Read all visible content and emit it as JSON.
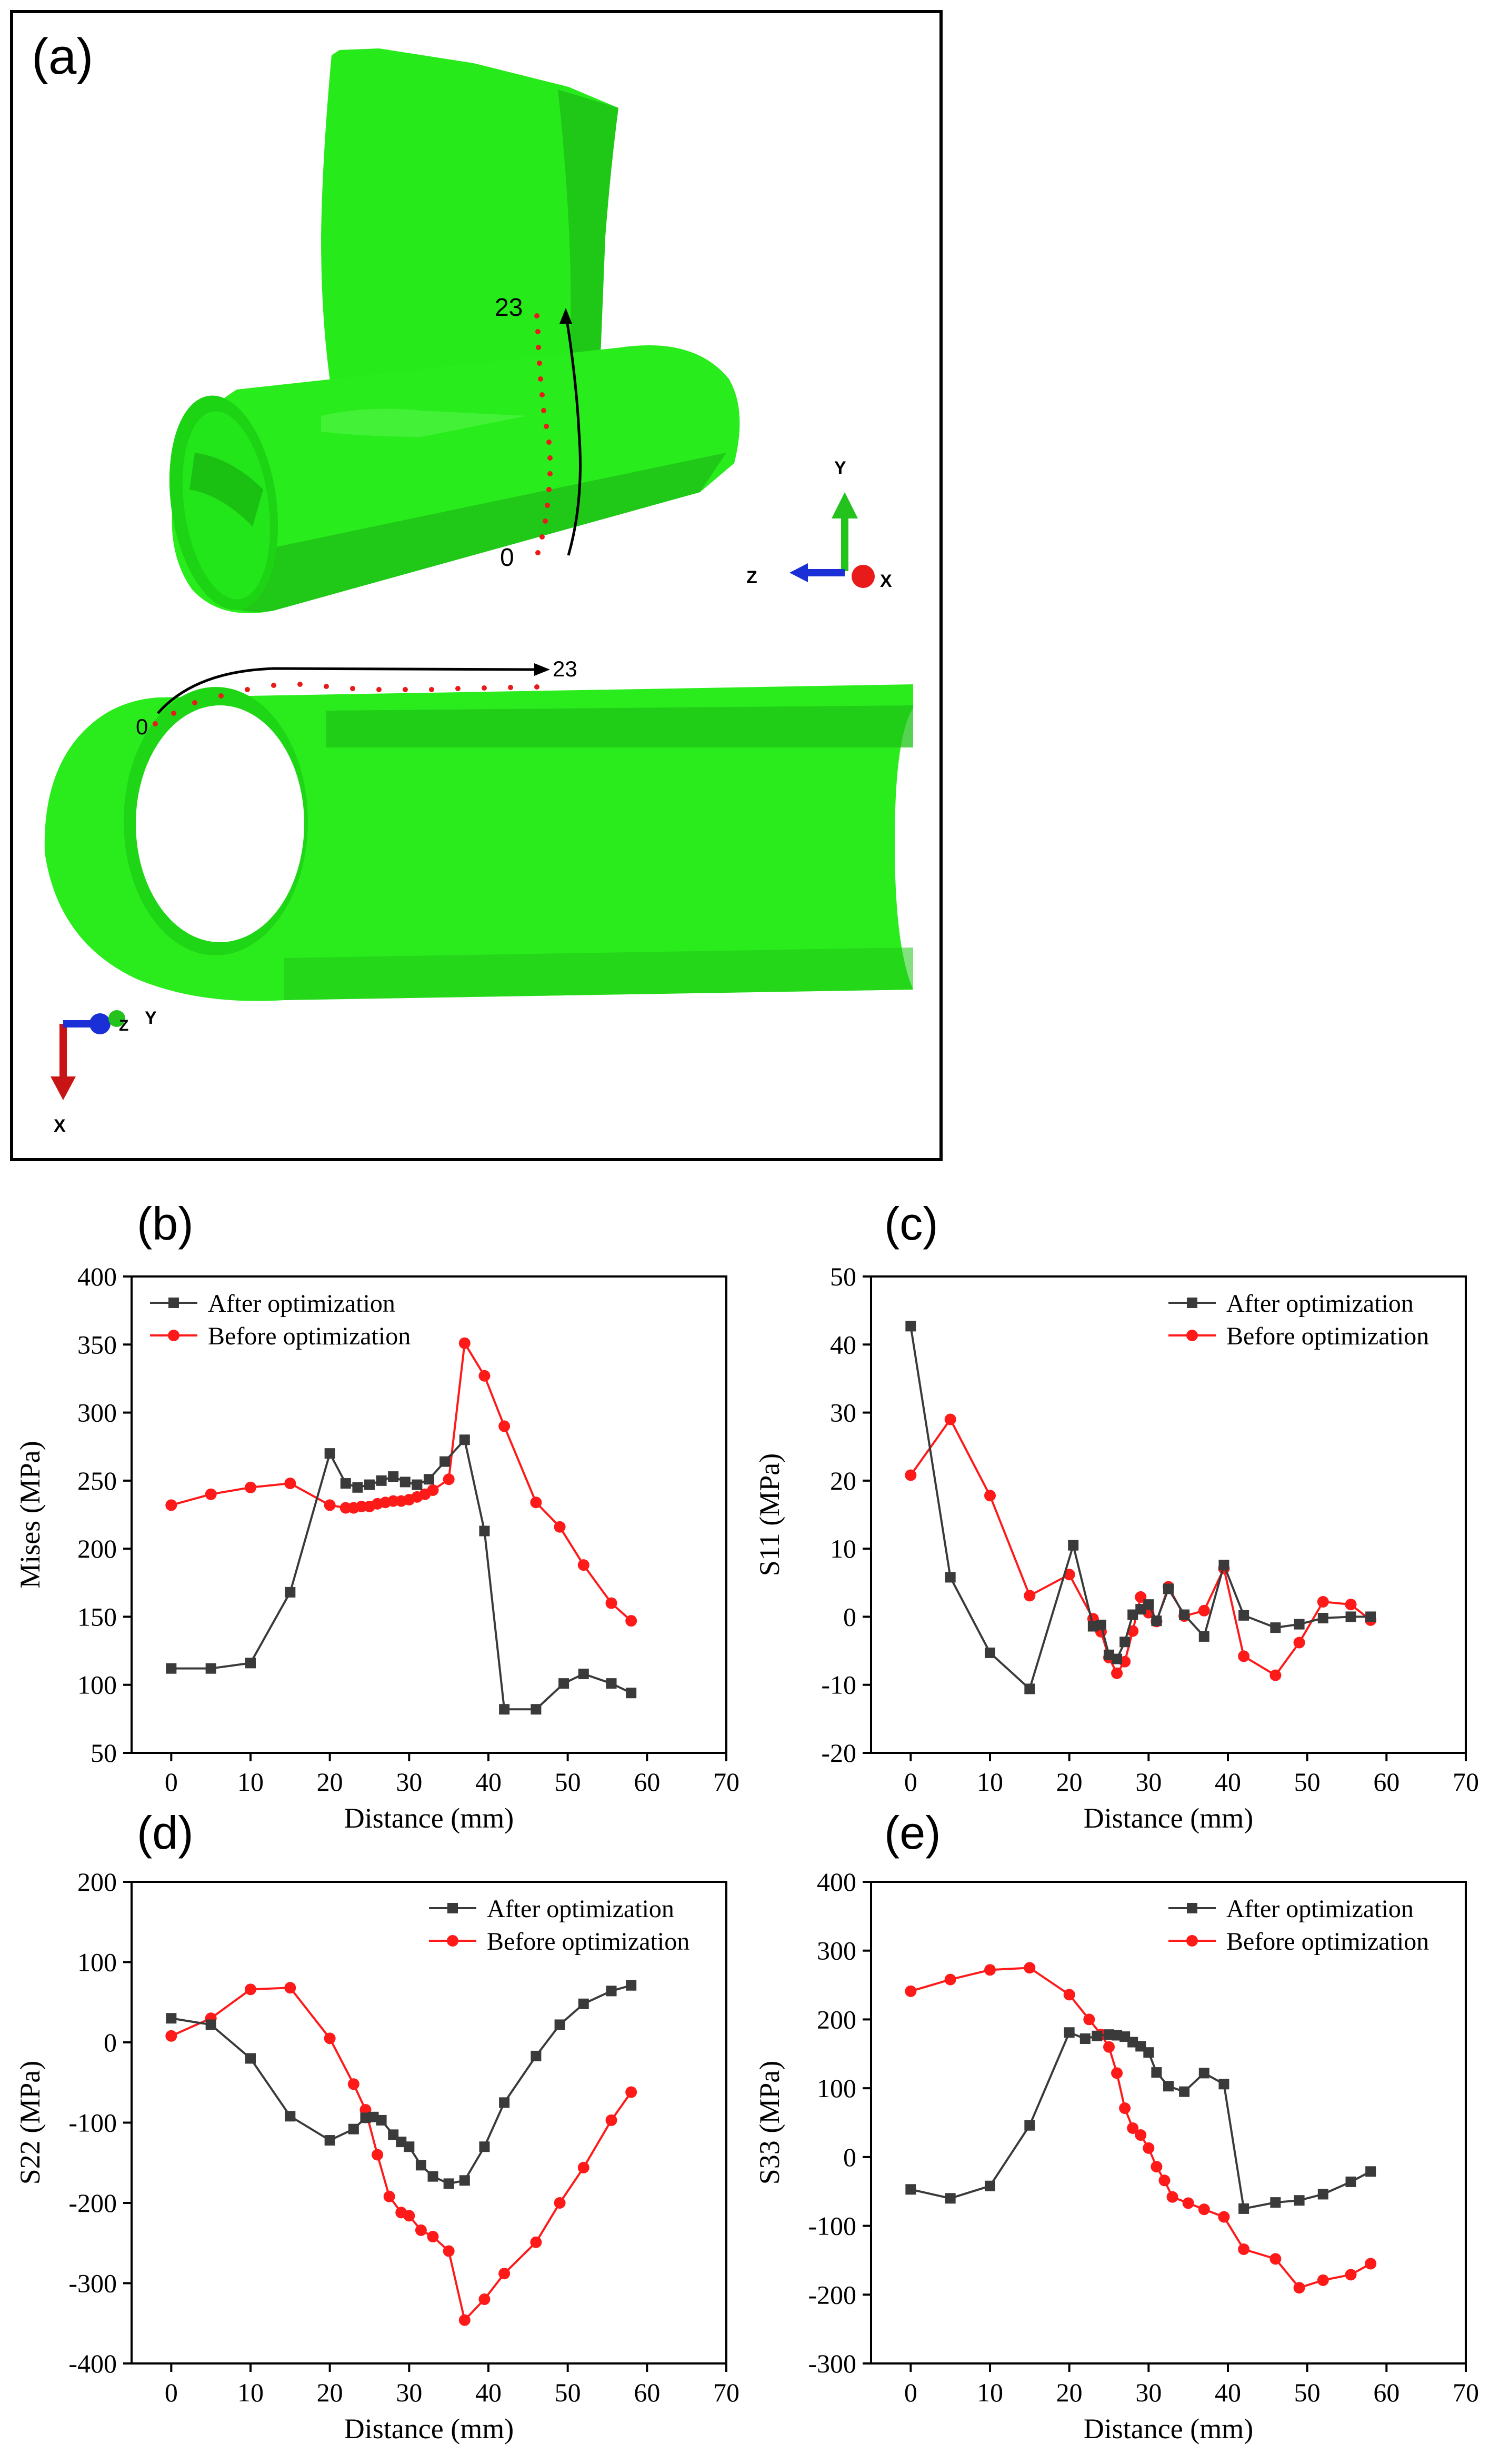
{
  "colors": {
    "after": "#3a3a3a",
    "before": "#ff1a1a",
    "model": "#22e81a",
    "model_dark": "#139c10",
    "axis_y": "#23c21c",
    "axis_z": "#1a2fd6",
    "axis_x": "#e81a1a"
  },
  "panel_a": {
    "label": "(a)",
    "top_model": {
      "path_start": "0",
      "path_end": "23",
      "triad": {
        "up": "Y",
        "left": "Z",
        "right": "X"
      }
    },
    "bottom_model": {
      "path_start": "0",
      "path_end": "23",
      "triad": {
        "right": "Y",
        "mid": "Z",
        "down": "X"
      }
    }
  },
  "chart_data": [
    {
      "id": "b",
      "panel_label": "(b)",
      "type": "line",
      "xlabel": "Distance (mm)",
      "ylabel": "Mises (MPa)",
      "xlim": [
        -5,
        70
      ],
      "ylim": [
        50,
        400
      ],
      "xticks": [
        0,
        10,
        20,
        30,
        40,
        50,
        60,
        70
      ],
      "yticks": [
        50,
        100,
        150,
        200,
        250,
        300,
        350,
        400
      ],
      "legend_position": "top-left",
      "series": [
        {
          "name": "After optimization",
          "marker": "square",
          "x": [
            0,
            5,
            10,
            15,
            20,
            22,
            23.5,
            25,
            26.5,
            28,
            29.5,
            31,
            32.5,
            34.5,
            37,
            39.5,
            42,
            46,
            49.5,
            52,
            55.5,
            58
          ],
          "y": [
            112,
            112,
            116,
            168,
            270,
            248,
            245,
            247,
            250,
            253,
            249,
            247,
            251,
            264,
            280,
            213,
            82,
            82,
            101,
            108,
            101,
            94
          ]
        },
        {
          "name": "Before optimization",
          "marker": "circle",
          "x": [
            0,
            5,
            10,
            15,
            20,
            22,
            23,
            24,
            25,
            26,
            27,
            28,
            29,
            30,
            31,
            32,
            33,
            35,
            37,
            39.5,
            42,
            46,
            49,
            52,
            55.5,
            58
          ],
          "y": [
            232,
            240,
            245,
            248,
            232,
            230,
            230,
            231,
            231,
            233,
            234,
            235,
            235,
            236,
            238,
            240,
            243,
            251,
            351,
            327,
            290,
            234,
            216,
            188,
            160,
            147
          ]
        }
      ]
    },
    {
      "id": "c",
      "panel_label": "(c)",
      "type": "line",
      "xlabel": "Distance (mm)",
      "ylabel": "S11 (MPa)",
      "xlim": [
        -5,
        70
      ],
      "ylim": [
        -20,
        50
      ],
      "xticks": [
        0,
        10,
        20,
        30,
        40,
        50,
        60,
        70
      ],
      "yticks": [
        -20,
        -10,
        0,
        10,
        20,
        30,
        40,
        50
      ],
      "legend_position": "top-right",
      "series": [
        {
          "name": "After optimization",
          "marker": "square",
          "x": [
            0,
            5,
            10,
            15,
            20.5,
            23,
            24,
            25,
            26,
            27,
            28,
            29,
            30,
            31,
            32.5,
            34.5,
            37,
            39.5,
            42,
            46,
            49,
            52,
            55.5,
            58
          ],
          "y": [
            42.7,
            5.8,
            -5.3,
            -10.6,
            10.5,
            -1.4,
            -1.2,
            -5.6,
            -6.2,
            -3.7,
            0.3,
            1.1,
            1.8,
            -0.6,
            4.1,
            0.3,
            -2.9,
            7.6,
            0.2,
            -1.6,
            -1.1,
            -0.2,
            0,
            0
          ]
        },
        {
          "name": "Before optimization",
          "marker": "circle",
          "x": [
            0,
            5,
            10,
            15,
            20,
            23,
            24,
            25,
            26,
            27,
            28,
            29,
            30,
            31,
            32.5,
            34.5,
            37,
            39.5,
            42,
            46,
            49,
            52,
            55.5,
            58
          ],
          "y": [
            20.8,
            29.0,
            17.8,
            3.1,
            6.2,
            -0.3,
            -2.2,
            -6.0,
            -8.3,
            -6.6,
            -2.1,
            2.9,
            0.6,
            -0.7,
            4.4,
            0.1,
            0.9,
            7.1,
            -5.8,
            -8.6,
            -3.8,
            2.2,
            1.8,
            -0.5
          ]
        }
      ]
    },
    {
      "id": "d",
      "panel_label": "(d)",
      "type": "line",
      "xlabel": "Distance (mm)",
      "ylabel": "S22 (MPa)",
      "xlim": [
        -5,
        70
      ],
      "ylim": [
        -400,
        200
      ],
      "xticks": [
        0,
        10,
        20,
        30,
        40,
        50,
        60,
        70
      ],
      "yticks": [
        -400,
        -300,
        -200,
        -100,
        0,
        100,
        200
      ],
      "legend_position": "top-right",
      "series": [
        {
          "name": "After optimization",
          "marker": "square",
          "x": [
            0,
            5,
            10,
            15,
            20,
            23,
            24.5,
            25.5,
            26.5,
            28,
            29,
            30,
            31.5,
            33,
            35,
            37,
            39.5,
            42,
            46,
            49,
            52,
            55.5,
            58
          ],
          "y": [
            30,
            22,
            -20,
            -92,
            -122,
            -108,
            -94,
            -93,
            -97,
            -115,
            -124,
            -130,
            -153,
            -167,
            -176,
            -172,
            -130,
            -75,
            -17,
            22,
            48,
            64,
            71
          ]
        },
        {
          "name": "Before optimization",
          "marker": "circle",
          "x": [
            0,
            5,
            10,
            15,
            20,
            23,
            24.5,
            26,
            27.5,
            29,
            30,
            31.5,
            33,
            35,
            37,
            39.5,
            42,
            46,
            49,
            52,
            55.5,
            58
          ],
          "y": [
            8,
            30,
            66,
            68,
            5,
            -52,
            -84,
            -140,
            -192,
            -212,
            -216,
            -234,
            -242,
            -260,
            -346,
            -320,
            -288,
            -249,
            -200,
            -156,
            -97,
            -62
          ]
        }
      ]
    },
    {
      "id": "e",
      "panel_label": "(e)",
      "type": "line",
      "xlabel": "Distance (mm)",
      "ylabel": "S33 (MPa)",
      "xlim": [
        -5,
        70
      ],
      "ylim": [
        -300,
        400
      ],
      "xticks": [
        0,
        10,
        20,
        30,
        40,
        50,
        60,
        70
      ],
      "yticks": [
        -300,
        -200,
        -100,
        0,
        100,
        200,
        300,
        400
      ],
      "legend_position": "top-right",
      "series": [
        {
          "name": "After optimization",
          "marker": "square",
          "x": [
            0,
            5,
            10,
            15,
            20,
            22,
            23.5,
            25,
            26,
            27,
            28,
            29,
            30,
            31,
            32.5,
            34.5,
            37,
            39.5,
            42,
            46,
            49,
            52,
            55.5,
            58
          ],
          "y": [
            -47,
            -60,
            -42,
            46,
            181,
            172,
            176,
            178,
            177,
            175,
            167,
            161,
            152,
            123,
            103,
            95,
            122,
            106,
            -75,
            -66,
            -63,
            -54,
            -36,
            -21
          ]
        },
        {
          "name": "Before optimization",
          "marker": "circle",
          "x": [
            0,
            5,
            10,
            15,
            20,
            22.5,
            24,
            25,
            26,
            27,
            28,
            29,
            30,
            31,
            32,
            33,
            35,
            37,
            39.5,
            42,
            46,
            49,
            52,
            55.5,
            58
          ],
          "y": [
            241,
            258,
            272,
            275,
            236,
            200,
            178,
            160,
            122,
            71,
            42,
            32,
            13,
            -14,
            -34,
            -58,
            -67,
            -76,
            -87,
            -134,
            -148,
            -190,
            -179,
            -171,
            -155
          ]
        }
      ]
    }
  ]
}
